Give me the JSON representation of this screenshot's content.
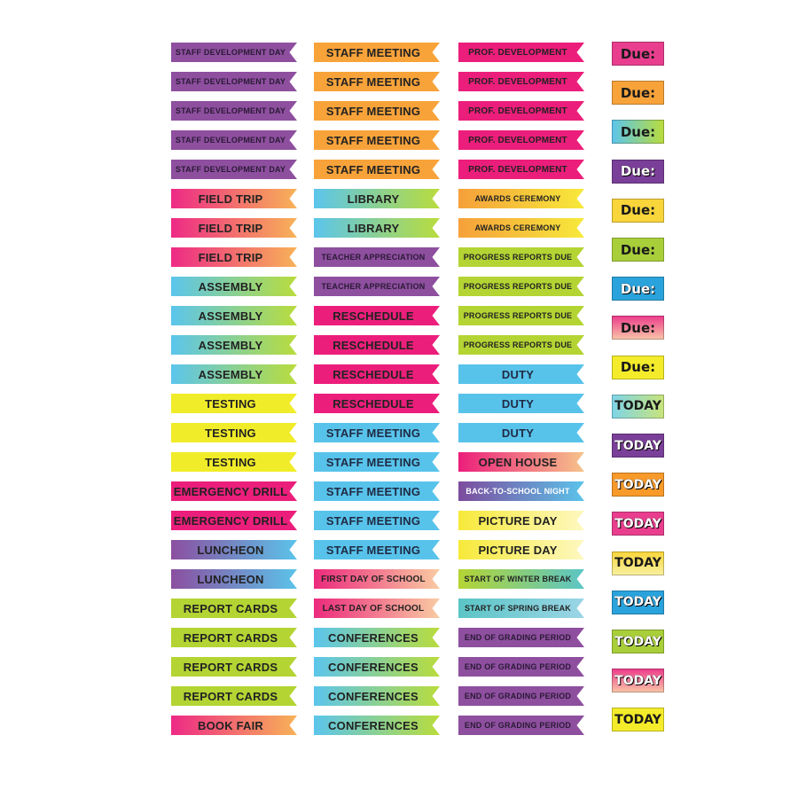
{
  "styles": {
    "purple": {
      "bg": "#8e4f9f",
      "fg": "#2a1a35"
    },
    "orange": {
      "bg": "#f8a33a",
      "fg": "#222222"
    },
    "pink": {
      "bg": "#ec1e7b",
      "fg": "#222222"
    },
    "pinkorange": {
      "bg": "linear-gradient(90deg,#ee2a86,#f7b257)",
      "fg": "#222222"
    },
    "blue": {
      "bg": "#58c3ea",
      "fg": "#1f2a44"
    },
    "bluegreen": {
      "bg": "linear-gradient(90deg,#5bc5ec,#b9dc3c)",
      "fg": "#222222"
    },
    "yellow": {
      "bg": "#f1ec29",
      "fg": "#222222"
    },
    "yelloworange": {
      "bg": "linear-gradient(90deg,#f6a03a,#f7e93a)",
      "fg": "#222222"
    },
    "green": {
      "bg": "#b4d433",
      "fg": "#222222"
    },
    "purplepink": {
      "bg": "linear-gradient(90deg,#8b4fa0,#e93c8c)",
      "fg": "#ffffff"
    },
    "purpleblue": {
      "bg": "linear-gradient(90deg,#8b4fa0,#5bc3ea)",
      "fg": "#222222"
    },
    "pinkpeach": {
      "bg": "linear-gradient(90deg,#ec2a7d,#f9cba2)",
      "fg": "#222222"
    },
    "pinkwhite": {
      "bg": "linear-gradient(90deg,#ec1e7b,#f6c38a)",
      "fg": "#222222"
    },
    "purpleblue2": {
      "bg": "linear-gradient(90deg,#7d4c9e,#5bc3ea)",
      "fg": "#ffffff"
    },
    "yellowpale": {
      "bg": "linear-gradient(90deg,#f7e93a,#fdf8bf)",
      "fg": "#222222"
    },
    "greenteal": {
      "bg": "linear-gradient(90deg,#b4d433,#5bc5c6)",
      "fg": "#222222"
    },
    "tealblue": {
      "bg": "linear-gradient(90deg,#5bc5c6,#9bd5e6)",
      "fg": "#222222"
    }
  },
  "columns": [
    [
      {
        "label": "STAFF DEVELOPMENT DAY",
        "style": "purple",
        "size": 9
      },
      {
        "label": "STAFF DEVELOPMENT DAY",
        "style": "purple",
        "size": 9
      },
      {
        "label": "STAFF DEVELOPMENT DAY",
        "style": "purple",
        "size": 9
      },
      {
        "label": "STAFF DEVELOPMENT DAY",
        "style": "purple",
        "size": 9
      },
      {
        "label": "STAFF DEVELOPMENT DAY",
        "style": "purple",
        "size": 9
      },
      {
        "label": "FIELD TRIP",
        "style": "pinkorange",
        "size": 13
      },
      {
        "label": "FIELD TRIP",
        "style": "pinkorange",
        "size": 13
      },
      {
        "label": "FIELD TRIP",
        "style": "pinkorange",
        "size": 13
      },
      {
        "label": "ASSEMBLY",
        "style": "bluegreen",
        "size": 13
      },
      {
        "label": "ASSEMBLY",
        "style": "bluegreen",
        "size": 13
      },
      {
        "label": "ASSEMBLY",
        "style": "bluegreen",
        "size": 13
      },
      {
        "label": "ASSEMBLY",
        "style": "bluegreen",
        "size": 13
      },
      {
        "label": "TESTING",
        "style": "yellow",
        "size": 13
      },
      {
        "label": "TESTING",
        "style": "yellow",
        "size": 13
      },
      {
        "label": "TESTING",
        "style": "yellow",
        "size": 13
      },
      {
        "label": "EMERGENCY DRILL",
        "style": "pink",
        "size": 13
      },
      {
        "label": "EMERGENCY DRILL",
        "style": "pink",
        "size": 13
      },
      {
        "label": "LUNCHEON",
        "style": "purpleblue",
        "size": 13
      },
      {
        "label": "LUNCHEON",
        "style": "purpleblue",
        "size": 13
      },
      {
        "label": "REPORT CARDS",
        "style": "green",
        "size": 13
      },
      {
        "label": "REPORT CARDS",
        "style": "green",
        "size": 13
      },
      {
        "label": "REPORT CARDS",
        "style": "green",
        "size": 13
      },
      {
        "label": "REPORT CARDS",
        "style": "green",
        "size": 13
      },
      {
        "label": "BOOK FAIR",
        "style": "pinkorange",
        "size": 13
      }
    ],
    [
      {
        "label": "STAFF MEETING",
        "style": "orange",
        "size": 13
      },
      {
        "label": "STAFF MEETING",
        "style": "orange",
        "size": 13
      },
      {
        "label": "STAFF MEETING",
        "style": "orange",
        "size": 13
      },
      {
        "label": "STAFF MEETING",
        "style": "orange",
        "size": 13
      },
      {
        "label": "STAFF MEETING",
        "style": "orange",
        "size": 13
      },
      {
        "label": "LIBRARY",
        "style": "bluegreen",
        "size": 13
      },
      {
        "label": "LIBRARY",
        "style": "bluegreen",
        "size": 13
      },
      {
        "label": "TEACHER APPRECIATION",
        "style": "purple",
        "size": 9
      },
      {
        "label": "TEACHER APPRECIATION",
        "style": "purple",
        "size": 9
      },
      {
        "label": "RESCHEDULE",
        "style": "pink",
        "size": 13
      },
      {
        "label": "RESCHEDULE",
        "style": "pink",
        "size": 13
      },
      {
        "label": "RESCHEDULE",
        "style": "pink",
        "size": 13
      },
      {
        "label": "RESCHEDULE",
        "style": "pink",
        "size": 13
      },
      {
        "label": "STAFF MEETING",
        "style": "blue",
        "size": 13
      },
      {
        "label": "STAFF MEETING",
        "style": "blue",
        "size": 13
      },
      {
        "label": "STAFF MEETING",
        "style": "blue",
        "size": 13
      },
      {
        "label": "STAFF MEETING",
        "style": "blue",
        "size": 13
      },
      {
        "label": "STAFF MEETING",
        "style": "blue",
        "size": 13
      },
      {
        "label": "FIRST DAY OF SCHOOL",
        "style": "pinkpeach",
        "size": 10
      },
      {
        "label": "LAST DAY OF SCHOOL",
        "style": "pinkpeach",
        "size": 10
      },
      {
        "label": "CONFERENCES",
        "style": "bluegreen",
        "size": 13
      },
      {
        "label": "CONFERENCES",
        "style": "bluegreen",
        "size": 13
      },
      {
        "label": "CONFERENCES",
        "style": "bluegreen",
        "size": 13
      },
      {
        "label": "CONFERENCES",
        "style": "bluegreen",
        "size": 13
      }
    ],
    [
      {
        "label": "PROF. DEVELOPMENT",
        "style": "pink",
        "size": 10
      },
      {
        "label": "PROF. DEVELOPMENT",
        "style": "pink",
        "size": 10
      },
      {
        "label": "PROF. DEVELOPMENT",
        "style": "pink",
        "size": 10
      },
      {
        "label": "PROF. DEVELOPMENT",
        "style": "pink",
        "size": 10
      },
      {
        "label": "PROF. DEVELOPMENT",
        "style": "pink",
        "size": 10
      },
      {
        "label": "AWARDS CEREMONY",
        "style": "yelloworange",
        "size": 9
      },
      {
        "label": "AWARDS CEREMONY",
        "style": "yelloworange",
        "size": 9
      },
      {
        "label": "PROGRESS REPORTS DUE",
        "style": "green",
        "size": 9
      },
      {
        "label": "PROGRESS REPORTS DUE",
        "style": "green",
        "size": 9
      },
      {
        "label": "PROGRESS REPORTS DUE",
        "style": "green",
        "size": 9
      },
      {
        "label": "PROGRESS REPORTS DUE",
        "style": "green",
        "size": 9
      },
      {
        "label": "DUTY",
        "style": "blue",
        "size": 13
      },
      {
        "label": "DUTY",
        "style": "blue",
        "size": 13
      },
      {
        "label": "DUTY",
        "style": "blue",
        "size": 13
      },
      {
        "label": "OPEN HOUSE",
        "style": "pinkwhite",
        "size": 13
      },
      {
        "label": "BACK-TO-SCHOOL NIGHT",
        "style": "purpleblue2",
        "size": 9
      },
      {
        "label": "PICTURE DAY",
        "style": "yellowpale",
        "size": 13
      },
      {
        "label": "PICTURE DAY",
        "style": "yellowpale",
        "size": 13
      },
      {
        "label": "START OF WINTER BREAK",
        "style": "greenteal",
        "size": 9
      },
      {
        "label": "START OF SPRING BREAK",
        "style": "tealblue",
        "size": 9
      },
      {
        "label": "END OF GRADING PERIOD",
        "style": "purple",
        "size": 9
      },
      {
        "label": "END OF GRADING PERIOD",
        "style": "purple",
        "size": 9
      },
      {
        "label": "END OF GRADING PERIOD",
        "style": "purple",
        "size": 9
      },
      {
        "label": "END OF GRADING PERIOD",
        "style": "purple",
        "size": 9
      }
    ]
  ],
  "tags": [
    {
      "label": "Due:",
      "bg": "#e93e8e",
      "light": false
    },
    {
      "label": "Due:",
      "bg": "#f8a33a",
      "light": false
    },
    {
      "label": "Due:",
      "bg": "linear-gradient(90deg,#5bc5ec,#b9dc3c)",
      "light": false
    },
    {
      "label": "Due:",
      "bg": "#7a3f98",
      "light": true
    },
    {
      "label": "Due:",
      "bg": "#f8d53a",
      "light": false
    },
    {
      "label": "Due:",
      "bg": "#a8cf3a",
      "light": false
    },
    {
      "label": "Due:",
      "bg": "#2aa3dc",
      "light": true
    },
    {
      "label": "Due:",
      "bg": "linear-gradient(180deg,#ec3a8a,#f9c6a8)",
      "light": false
    },
    {
      "label": "Due:",
      "bg": "#f4ec2a",
      "light": false
    },
    {
      "label": "TODAY",
      "bg": "linear-gradient(90deg,#7ed4e8,#c8e47a)",
      "light": false
    },
    {
      "label": "TODAY",
      "bg": "#7a3f98",
      "light": true
    },
    {
      "label": "TODAY",
      "bg": "#f89a2a",
      "light": true
    },
    {
      "label": "TODAY",
      "bg": "#e93e8e",
      "light": true
    },
    {
      "label": "TODAY",
      "bg": "linear-gradient(180deg,#f8d53a,#f8f0a0)",
      "light": false
    },
    {
      "label": "TODAY",
      "bg": "#2aa3dc",
      "light": true
    },
    {
      "label": "TODAY",
      "bg": "#a8cf3a",
      "light": true
    },
    {
      "label": "TODAY",
      "bg": "linear-gradient(180deg,#ec3a8a,#f9c6a8)",
      "light": true
    },
    {
      "label": "TODAY",
      "bg": "#f4ec2a",
      "light": false
    }
  ]
}
